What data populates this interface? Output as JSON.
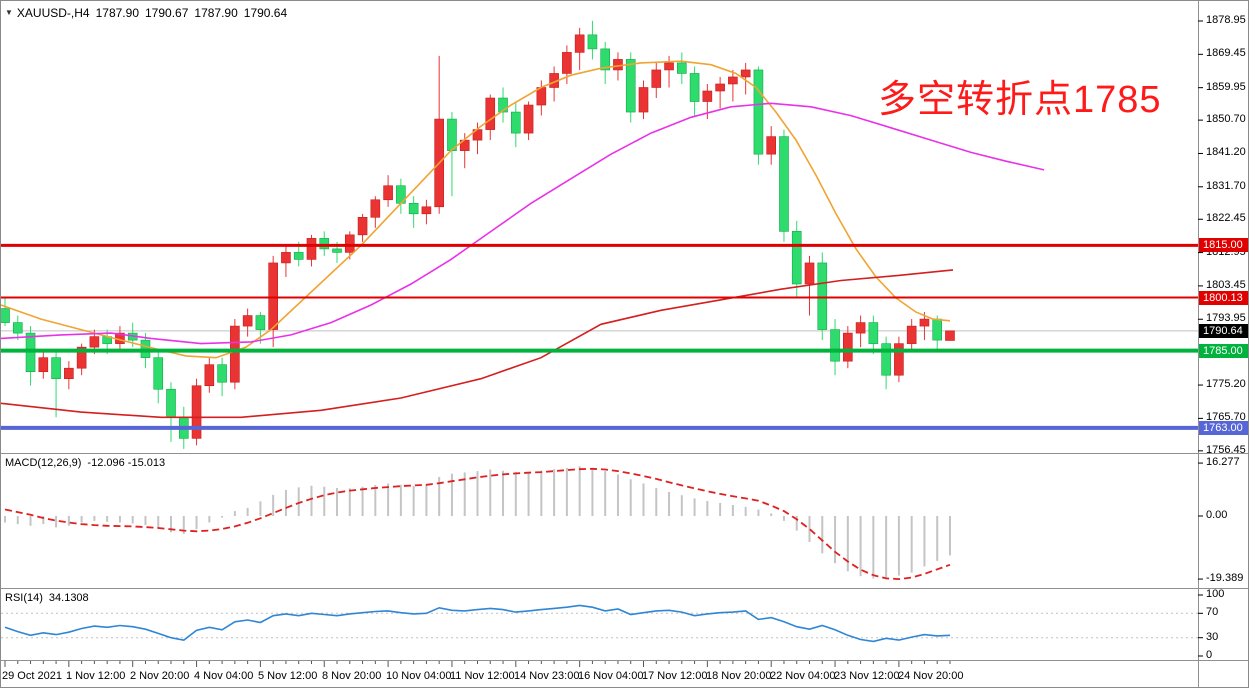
{
  "window": {
    "title": {
      "dropdown_arrow": "▼",
      "symbol": "XAUUSD-,H4",
      "open": "1787.90",
      "high": "1790.67",
      "low": "1787.90",
      "close": "1790.64"
    }
  },
  "annotation": {
    "text": "多空转折点1785",
    "color": "#ff1a1a"
  },
  "indicators": {
    "macd": {
      "name": "MACD(12,26,9)",
      "values": "-12.096 -15.013",
      "axis_ticks": [
        "16.277",
        "0.00",
        "-19.389"
      ]
    },
    "rsi": {
      "name": "RSI(14)",
      "values": "34.1308",
      "axis_ticks": [
        "100",
        "70",
        "30",
        "0"
      ]
    }
  },
  "price_axis": {
    "ticks": [
      1878.95,
      1869.45,
      1859.95,
      1850.7,
      1841.2,
      1831.7,
      1822.45,
      1812.95,
      1803.45,
      1793.95,
      1775.2,
      1765.7,
      1756.45
    ],
    "tags": [
      {
        "label": "1815.00",
        "price": 1815.0,
        "color": "#e00000"
      },
      {
        "label": "1800.13",
        "price": 1800.13,
        "color": "#e00000"
      },
      {
        "label": "1790.64",
        "price": 1790.64,
        "color": "#000000"
      },
      {
        "label": "1785.00",
        "price": 1785.0,
        "color": "#00b33c"
      },
      {
        "label": "1763.00",
        "price": 1763.0,
        "color": "#5766d6"
      }
    ]
  },
  "time_axis": {
    "labels": [
      "29 Oct 2021",
      "1 Nov 12:00",
      "2 Nov 20:00",
      "4 Nov 04:00",
      "5 Nov 12:00",
      "8 Nov 20:00",
      "10 Nov 04:00",
      "11 Nov 12:00",
      "14 Nov 23:00",
      "16 Nov 04:00",
      "17 Nov 12:00",
      "18 Nov 20:00",
      "22 Nov 04:00",
      "23 Nov 12:00",
      "24 Nov 20:00"
    ]
  },
  "chart_data": [
    {
      "type": "candlestick",
      "title": "XAUUSD- H4",
      "ylim": [
        1752.5,
        1884.6
      ],
      "grid": false,
      "up_color": "#ea3434",
      "down_color": "#2edc6e",
      "note": "Chinese convention: red = bullish, green = bearish",
      "candles": [
        [
          1797,
          1800,
          1792,
          1793
        ],
        [
          1793,
          1795,
          1788,
          1790
        ],
        [
          1790,
          1792,
          1775,
          1779
        ],
        [
          1779,
          1785,
          1777,
          1783
        ],
        [
          1783,
          1785,
          1766,
          1777
        ],
        [
          1777,
          1782,
          1774,
          1780
        ],
        [
          1780,
          1787,
          1778,
          1786
        ],
        [
          1786,
          1791,
          1784,
          1789
        ],
        [
          1789,
          1791,
          1784,
          1787
        ],
        [
          1787,
          1792,
          1785,
          1790
        ],
        [
          1790,
          1793,
          1786,
          1788
        ],
        [
          1788,
          1790,
          1780,
          1783
        ],
        [
          1783,
          1785,
          1770,
          1774
        ],
        [
          1774,
          1776,
          1759,
          1766
        ],
        [
          1766,
          1769,
          1757,
          1760
        ],
        [
          1760,
          1777,
          1758,
          1775
        ],
        [
          1775,
          1783,
          1773,
          1781
        ],
        [
          1781,
          1783,
          1772,
          1776
        ],
        [
          1776,
          1794,
          1774,
          1792
        ],
        [
          1792,
          1797,
          1789,
          1795
        ],
        [
          1795,
          1796,
          1787,
          1791
        ],
        [
          1791,
          1812,
          1786,
          1810
        ],
        [
          1810,
          1815,
          1806,
          1813
        ],
        [
          1813,
          1816,
          1809,
          1811
        ],
        [
          1811,
          1818,
          1809,
          1817
        ],
        [
          1817,
          1819,
          1812,
          1814
        ],
        [
          1814,
          1816,
          1810,
          1813
        ],
        [
          1813,
          1819,
          1811,
          1818
        ],
        [
          1818,
          1824,
          1816,
          1823
        ],
        [
          1823,
          1829,
          1820,
          1828
        ],
        [
          1828,
          1835,
          1826,
          1832
        ],
        [
          1832,
          1834,
          1824,
          1827
        ],
        [
          1827,
          1829,
          1820,
          1824
        ],
        [
          1824,
          1828,
          1821,
          1826
        ],
        [
          1826,
          1869,
          1824,
          1851
        ],
        [
          1851,
          1853,
          1829,
          1842
        ],
        [
          1842,
          1847,
          1837,
          1845
        ],
        [
          1845,
          1850,
          1841,
          1848
        ],
        [
          1848,
          1858,
          1845,
          1857
        ],
        [
          1857,
          1860,
          1850,
          1853
        ],
        [
          1853,
          1856,
          1843,
          1847
        ],
        [
          1847,
          1856,
          1845,
          1855
        ],
        [
          1855,
          1862,
          1852,
          1860
        ],
        [
          1860,
          1866,
          1856,
          1864
        ],
        [
          1864,
          1872,
          1861,
          1870
        ],
        [
          1870,
          1877,
          1865,
          1875
        ],
        [
          1875,
          1879,
          1868,
          1871
        ],
        [
          1871,
          1873,
          1861,
          1865
        ],
        [
          1865,
          1870,
          1862,
          1868
        ],
        [
          1868,
          1870,
          1850,
          1853
        ],
        [
          1853,
          1862,
          1851,
          1860
        ],
        [
          1860,
          1867,
          1857,
          1865
        ],
        [
          1865,
          1869,
          1860,
          1867
        ],
        [
          1867,
          1870,
          1861,
          1864
        ],
        [
          1864,
          1866,
          1852,
          1856
        ],
        [
          1856,
          1861,
          1851,
          1859
        ],
        [
          1859,
          1863,
          1854,
          1861
        ],
        [
          1861,
          1865,
          1856,
          1863
        ],
        [
          1863,
          1867,
          1858,
          1865
        ],
        [
          1865,
          1866,
          1838,
          1841
        ],
        [
          1841,
          1849,
          1838,
          1846
        ],
        [
          1846,
          1848,
          1816,
          1819
        ],
        [
          1819,
          1822,
          1800,
          1804
        ],
        [
          1804,
          1812,
          1795,
          1810
        ],
        [
          1810,
          1813,
          1788,
          1791
        ],
        [
          1791,
          1794,
          1778,
          1782
        ],
        [
          1782,
          1792,
          1780,
          1790
        ],
        [
          1790,
          1795,
          1786,
          1793
        ],
        [
          1793,
          1795,
          1784,
          1787
        ],
        [
          1787,
          1789,
          1774,
          1778
        ],
        [
          1778,
          1789,
          1776,
          1787
        ],
        [
          1787,
          1794,
          1785,
          1792
        ],
        [
          1792,
          1796,
          1788,
          1794
        ],
        [
          1794,
          1795,
          1785,
          1788
        ],
        [
          1787.9,
          1790.67,
          1787.9,
          1790.64
        ]
      ],
      "hlines": [
        {
          "price": 1815.0,
          "color": "#e00000",
          "width": 3
        },
        {
          "price": 1800.13,
          "color": "#e00000",
          "width": 2
        },
        {
          "price": 1790.64,
          "color": "#c0c0c0",
          "width": 1
        },
        {
          "price": 1785.0,
          "color": "#00b33c",
          "width": 4
        },
        {
          "price": 1763.0,
          "color": "#5766d6",
          "width": 4
        }
      ],
      "ma_lines": [
        {
          "name": "ma-fast",
          "color": "#f0a432",
          "width": 1.6,
          "points": [
            [
              0,
              1798
            ],
            [
              40,
              1794
            ],
            [
              80,
              1791
            ],
            [
              120,
              1788
            ],
            [
              155,
              1785.5
            ],
            [
              185,
              1783.5
            ],
            [
              215,
              1783
            ],
            [
              245,
              1786
            ],
            [
              270,
              1791
            ],
            [
              300,
              1799
            ],
            [
              330,
              1807
            ],
            [
              360,
              1815
            ],
            [
              390,
              1824
            ],
            [
              420,
              1833
            ],
            [
              450,
              1842
            ],
            [
              480,
              1849
            ],
            [
              510,
              1855
            ],
            [
              540,
              1860
            ],
            [
              570,
              1863.5
            ],
            [
              600,
              1865.5
            ],
            [
              640,
              1867
            ],
            [
              680,
              1867.5
            ],
            [
              710,
              1866.5
            ],
            [
              735,
              1864
            ],
            [
              755,
              1860
            ],
            [
              775,
              1853
            ],
            [
              795,
              1845
            ],
            [
              815,
              1835
            ],
            [
              835,
              1824
            ],
            [
              855,
              1814
            ],
            [
              875,
              1806
            ],
            [
              895,
              1800
            ],
            [
              915,
              1796
            ],
            [
              932,
              1794
            ],
            [
              949,
              1793.5
            ]
          ]
        },
        {
          "name": "ma-mid",
          "color": "#e832e8",
          "width": 1.6,
          "points": [
            [
              0,
              1788.5
            ],
            [
              60,
              1789.5
            ],
            [
              110,
              1790
            ],
            [
              150,
              1788.5
            ],
            [
              200,
              1787
            ],
            [
              250,
              1787.5
            ],
            [
              290,
              1789.5
            ],
            [
              330,
              1793
            ],
            [
              370,
              1798
            ],
            [
              410,
              1804
            ],
            [
              450,
              1811
            ],
            [
              490,
              1819
            ],
            [
              530,
              1827
            ],
            [
              570,
              1834
            ],
            [
              610,
              1841
            ],
            [
              650,
              1847
            ],
            [
              690,
              1851.5
            ],
            [
              730,
              1854.5
            ],
            [
              770,
              1855.5
            ],
            [
              810,
              1854.5
            ],
            [
              850,
              1852
            ],
            [
              890,
              1848.5
            ],
            [
              930,
              1845
            ],
            [
              970,
              1841.5
            ],
            [
              1005,
              1839
            ],
            [
              1043,
              1836.5
            ]
          ]
        },
        {
          "name": "ma-slow",
          "color": "#d41f1f",
          "width": 1.6,
          "points": [
            [
              0,
              1770
            ],
            [
              80,
              1767.5
            ],
            [
              160,
              1766
            ],
            [
              240,
              1766
            ],
            [
              320,
              1768
            ],
            [
              400,
              1771.5
            ],
            [
              480,
              1777
            ],
            [
              540,
              1783
            ],
            [
              600,
              1792.5
            ],
            [
              660,
              1796.5
            ],
            [
              720,
              1799.5
            ],
            [
              780,
              1802.5
            ],
            [
              840,
              1805
            ],
            [
              900,
              1806.5
            ],
            [
              952,
              1808
            ]
          ]
        }
      ]
    },
    {
      "type": "bar",
      "title": "MACD(12,26,9)",
      "ylim": [
        -19.389,
        16.277
      ],
      "hist_color": "#c4c4c4",
      "signal_color": "#e02020",
      "hist": [
        -2,
        -2.5,
        -3,
        -2.5,
        -3.5,
        -3,
        -2,
        -1.5,
        -1.8,
        -2,
        -2.3,
        -2.8,
        -3.8,
        -5,
        -5.5,
        -4,
        -2,
        -0.5,
        1.5,
        2.5,
        4.5,
        6.5,
        8,
        8.8,
        9.3,
        9,
        8.6,
        8.5,
        9,
        9.5,
        10,
        9.6,
        9.2,
        9.6,
        12,
        13,
        13.4,
        13.8,
        14.3,
        13.9,
        13.5,
        13.6,
        14,
        14.4,
        14.8,
        15.3,
        14.8,
        13.8,
        12.8,
        11.3,
        10,
        8.6,
        7.4,
        6.4,
        5.4,
        4.6,
        4,
        3.4,
        2.8,
        2,
        0.8,
        -1.5,
        -4.5,
        -8,
        -11.5,
        -14.5,
        -17,
        -18.5,
        -19.2,
        -19,
        -18.3,
        -17.4,
        -15.5,
        -13.8,
        -12.1
      ],
      "signal": [
        2,
        1.2,
        0.4,
        -0.6,
        -1.4,
        -2,
        -2.5,
        -2.8,
        -3,
        -3.1,
        -3.2,
        -3.4,
        -3.7,
        -4.1,
        -4.5,
        -4.7,
        -4.5,
        -4,
        -3.2,
        -2.1,
        -0.7,
        0.9,
        2.5,
        4,
        5.3,
        6.4,
        7.2,
        7.8,
        8.2,
        8.6,
        8.9,
        9.2,
        9.4,
        9.6,
        10.1,
        10.7,
        11.3,
        11.9,
        12.4,
        12.8,
        13.1,
        13.3,
        13.5,
        13.8,
        14.1,
        14.4,
        14.5,
        14.3,
        13.8,
        13.1,
        12.3,
        11.4,
        10.4,
        9.4,
        8.5,
        7.6,
        6.8,
        6.1,
        5.4,
        4.7,
        3.2,
        1.5,
        -1,
        -4,
        -7.5,
        -11,
        -14,
        -16.5,
        -18.2,
        -19.2,
        -19.4,
        -18.9,
        -17.8,
        -16.4,
        -15
      ]
    },
    {
      "type": "line",
      "title": "RSI(14)",
      "ylim": [
        0,
        100
      ],
      "levels": [
        70,
        30
      ],
      "line_color": "#2e86d5",
      "values": [
        47,
        40,
        34,
        38,
        35,
        39,
        45,
        49,
        47,
        50,
        48,
        44,
        37,
        30,
        26,
        42,
        47,
        43,
        56,
        59,
        55,
        66,
        69,
        66,
        70,
        68,
        66,
        69,
        71,
        73,
        74,
        71,
        69,
        70,
        79,
        75,
        74,
        76,
        78,
        76,
        72,
        74,
        76,
        78,
        80,
        83,
        80,
        74,
        77,
        68,
        71,
        74,
        75,
        72,
        66,
        69,
        71,
        72,
        74,
        60,
        63,
        56,
        48,
        44,
        50,
        43,
        34,
        27,
        24,
        29,
        26,
        31,
        35,
        33,
        34
      ]
    }
  ]
}
